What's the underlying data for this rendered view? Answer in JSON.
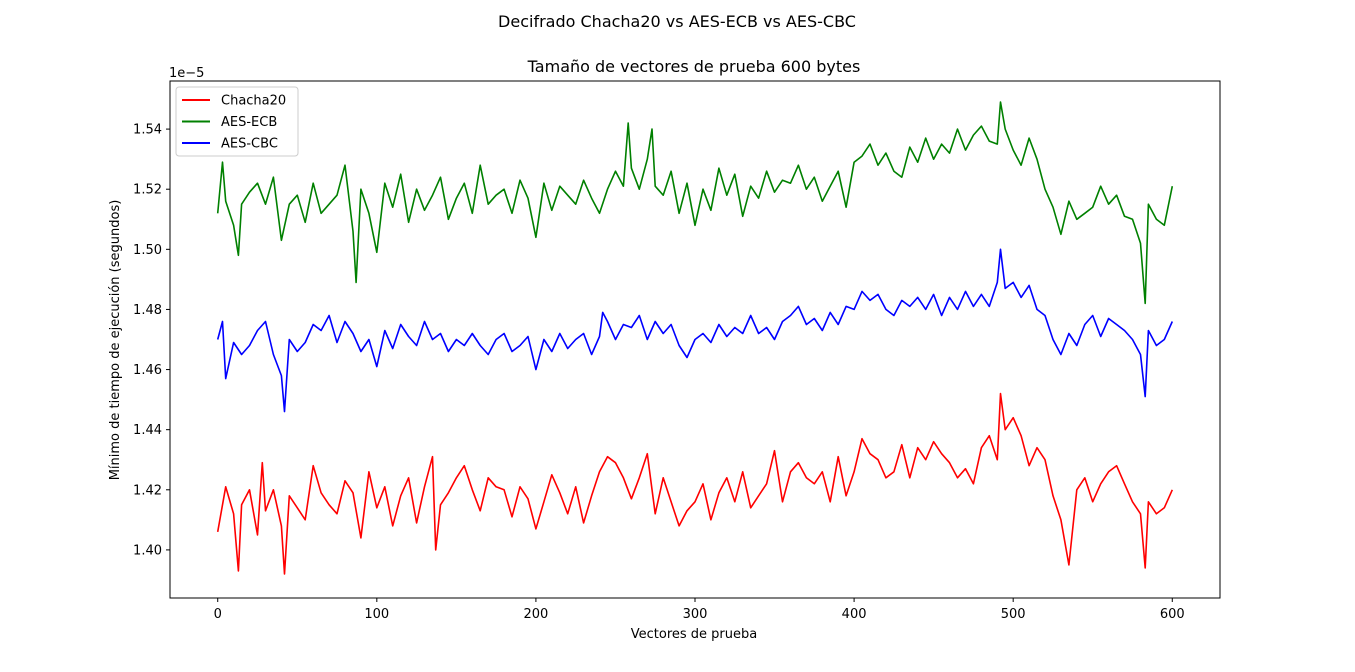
{
  "chart_data": {
    "type": "line",
    "suptitle": "Decifrado Chacha20 vs AES-ECB vs AES-CBC",
    "title": "Tamaño de vectores de prueba 600 bytes",
    "xlabel": "Vectores de prueba",
    "ylabel": "Mínimo de tiempo de ejecución (segundos)",
    "y_offset_label": "1e−5",
    "xlim": [
      -30,
      630
    ],
    "ylim": [
      1.384,
      1.556
    ],
    "xticks": [
      0,
      100,
      200,
      300,
      400,
      500,
      600
    ],
    "yticks": [
      1.4,
      1.42,
      1.44,
      1.46,
      1.48,
      1.5,
      1.52,
      1.54
    ],
    "xtick_labels": [
      "0",
      "100",
      "200",
      "300",
      "400",
      "500",
      "600"
    ],
    "ytick_labels": [
      "1.40",
      "1.42",
      "1.44",
      "1.46",
      "1.48",
      "1.50",
      "1.52",
      "1.54"
    ],
    "grid": false,
    "legend_position": "top-left",
    "series": [
      {
        "name": "Chacha20",
        "color": "#ff0000",
        "x": [
          0,
          5,
          10,
          13,
          15,
          20,
          25,
          28,
          30,
          35,
          40,
          42,
          45,
          50,
          55,
          60,
          65,
          70,
          75,
          80,
          85,
          90,
          95,
          100,
          105,
          110,
          115,
          120,
          125,
          130,
          135,
          137,
          140,
          145,
          150,
          155,
          160,
          165,
          170,
          175,
          180,
          185,
          190,
          195,
          200,
          205,
          210,
          215,
          220,
          225,
          230,
          235,
          240,
          245,
          250,
          255,
          260,
          265,
          270,
          275,
          280,
          285,
          290,
          295,
          300,
          305,
          310,
          315,
          320,
          325,
          330,
          335,
          340,
          345,
          350,
          355,
          360,
          365,
          370,
          375,
          380,
          385,
          390,
          395,
          400,
          405,
          410,
          415,
          420,
          425,
          430,
          435,
          440,
          445,
          450,
          455,
          460,
          465,
          470,
          475,
          480,
          485,
          490,
          492,
          495,
          500,
          505,
          510,
          515,
          520,
          525,
          530,
          535,
          540,
          545,
          550,
          555,
          560,
          565,
          570,
          575,
          580,
          583,
          585,
          590,
          595,
          600
        ],
        "values": [
          1.406,
          1.421,
          1.412,
          1.393,
          1.415,
          1.42,
          1.405,
          1.429,
          1.413,
          1.42,
          1.408,
          1.392,
          1.418,
          1.414,
          1.41,
          1.428,
          1.419,
          1.415,
          1.412,
          1.423,
          1.419,
          1.404,
          1.426,
          1.414,
          1.421,
          1.408,
          1.418,
          1.424,
          1.409,
          1.421,
          1.431,
          1.4,
          1.415,
          1.419,
          1.424,
          1.428,
          1.42,
          1.413,
          1.424,
          1.421,
          1.42,
          1.411,
          1.421,
          1.417,
          1.407,
          1.416,
          1.425,
          1.419,
          1.412,
          1.421,
          1.409,
          1.418,
          1.426,
          1.431,
          1.429,
          1.424,
          1.417,
          1.424,
          1.432,
          1.412,
          1.424,
          1.416,
          1.408,
          1.413,
          1.416,
          1.422,
          1.41,
          1.419,
          1.424,
          1.416,
          1.426,
          1.414,
          1.418,
          1.422,
          1.433,
          1.416,
          1.426,
          1.429,
          1.424,
          1.422,
          1.426,
          1.416,
          1.431,
          1.418,
          1.426,
          1.437,
          1.432,
          1.43,
          1.424,
          1.426,
          1.435,
          1.424,
          1.434,
          1.43,
          1.436,
          1.432,
          1.429,
          1.424,
          1.427,
          1.422,
          1.434,
          1.438,
          1.43,
          1.452,
          1.44,
          1.444,
          1.438,
          1.428,
          1.434,
          1.43,
          1.418,
          1.41,
          1.395,
          1.42,
          1.424,
          1.416,
          1.422,
          1.426,
          1.428,
          1.422,
          1.416,
          1.412,
          1.394,
          1.416,
          1.412,
          1.414,
          1.42
        ]
      },
      {
        "name": "AES-ECB",
        "color": "#008000",
        "x": [
          0,
          3,
          5,
          10,
          13,
          15,
          20,
          25,
          30,
          35,
          40,
          45,
          50,
          55,
          60,
          65,
          70,
          75,
          80,
          85,
          87,
          90,
          95,
          100,
          105,
          110,
          115,
          120,
          125,
          130,
          135,
          140,
          145,
          150,
          155,
          160,
          165,
          170,
          175,
          180,
          185,
          190,
          195,
          200,
          205,
          210,
          215,
          220,
          225,
          230,
          235,
          240,
          245,
          250,
          255,
          258,
          260,
          265,
          270,
          273,
          275,
          280,
          285,
          290,
          295,
          300,
          305,
          310,
          315,
          320,
          325,
          330,
          335,
          340,
          345,
          350,
          355,
          360,
          365,
          370,
          375,
          380,
          385,
          390,
          395,
          400,
          405,
          410,
          415,
          420,
          425,
          430,
          435,
          440,
          445,
          450,
          455,
          460,
          465,
          470,
          475,
          480,
          485,
          490,
          492,
          495,
          500,
          505,
          510,
          515,
          520,
          525,
          530,
          535,
          540,
          545,
          550,
          555,
          560,
          565,
          570,
          575,
          580,
          583,
          585,
          590,
          595,
          600
        ],
        "values": [
          1.512,
          1.529,
          1.516,
          1.508,
          1.498,
          1.515,
          1.519,
          1.522,
          1.515,
          1.524,
          1.503,
          1.515,
          1.518,
          1.509,
          1.522,
          1.512,
          1.515,
          1.518,
          1.528,
          1.506,
          1.489,
          1.52,
          1.512,
          1.499,
          1.522,
          1.514,
          1.525,
          1.509,
          1.52,
          1.513,
          1.518,
          1.524,
          1.51,
          1.517,
          1.522,
          1.512,
          1.528,
          1.515,
          1.518,
          1.52,
          1.512,
          1.523,
          1.517,
          1.504,
          1.522,
          1.513,
          1.521,
          1.518,
          1.515,
          1.523,
          1.517,
          1.512,
          1.52,
          1.526,
          1.521,
          1.542,
          1.527,
          1.52,
          1.53,
          1.54,
          1.521,
          1.518,
          1.526,
          1.512,
          1.522,
          1.508,
          1.52,
          1.513,
          1.527,
          1.518,
          1.525,
          1.511,
          1.521,
          1.517,
          1.526,
          1.519,
          1.523,
          1.522,
          1.528,
          1.52,
          1.524,
          1.516,
          1.521,
          1.526,
          1.514,
          1.529,
          1.531,
          1.535,
          1.528,
          1.532,
          1.526,
          1.524,
          1.534,
          1.529,
          1.537,
          1.53,
          1.535,
          1.532,
          1.54,
          1.533,
          1.538,
          1.541,
          1.536,
          1.535,
          1.549,
          1.54,
          1.533,
          1.528,
          1.537,
          1.53,
          1.52,
          1.514,
          1.505,
          1.516,
          1.51,
          1.512,
          1.514,
          1.521,
          1.515,
          1.518,
          1.511,
          1.51,
          1.502,
          1.482,
          1.515,
          1.51,
          1.508,
          1.521
        ]
      },
      {
        "name": "AES-CBC",
        "color": "#0000ff",
        "x": [
          0,
          3,
          5,
          10,
          15,
          20,
          25,
          30,
          35,
          40,
          42,
          45,
          50,
          55,
          60,
          65,
          70,
          75,
          80,
          85,
          90,
          95,
          100,
          105,
          110,
          115,
          120,
          125,
          130,
          135,
          140,
          145,
          150,
          155,
          160,
          165,
          170,
          175,
          180,
          185,
          190,
          195,
          200,
          205,
          210,
          215,
          220,
          225,
          230,
          235,
          240,
          242,
          245,
          250,
          255,
          260,
          265,
          270,
          275,
          280,
          285,
          290,
          295,
          300,
          305,
          310,
          315,
          320,
          325,
          330,
          335,
          340,
          345,
          350,
          355,
          360,
          365,
          370,
          375,
          380,
          385,
          390,
          395,
          400,
          405,
          410,
          415,
          420,
          425,
          430,
          435,
          440,
          445,
          450,
          455,
          460,
          465,
          470,
          475,
          480,
          485,
          490,
          492,
          495,
          500,
          505,
          510,
          515,
          520,
          525,
          530,
          535,
          540,
          545,
          550,
          555,
          560,
          565,
          570,
          575,
          580,
          583,
          585,
          590,
          595,
          600
        ],
        "values": [
          1.47,
          1.476,
          1.457,
          1.469,
          1.465,
          1.468,
          1.473,
          1.476,
          1.465,
          1.458,
          1.446,
          1.47,
          1.466,
          1.469,
          1.475,
          1.473,
          1.478,
          1.469,
          1.476,
          1.472,
          1.466,
          1.47,
          1.461,
          1.473,
          1.467,
          1.475,
          1.471,
          1.468,
          1.476,
          1.47,
          1.472,
          1.466,
          1.47,
          1.468,
          1.472,
          1.468,
          1.465,
          1.47,
          1.472,
          1.466,
          1.468,
          1.471,
          1.46,
          1.47,
          1.466,
          1.472,
          1.467,
          1.47,
          1.472,
          1.465,
          1.471,
          1.479,
          1.476,
          1.47,
          1.475,
          1.474,
          1.478,
          1.47,
          1.476,
          1.472,
          1.475,
          1.468,
          1.464,
          1.47,
          1.472,
          1.469,
          1.475,
          1.471,
          1.474,
          1.472,
          1.478,
          1.472,
          1.474,
          1.47,
          1.476,
          1.478,
          1.481,
          1.475,
          1.477,
          1.473,
          1.479,
          1.475,
          1.481,
          1.48,
          1.486,
          1.483,
          1.485,
          1.48,
          1.478,
          1.483,
          1.481,
          1.484,
          1.48,
          1.485,
          1.478,
          1.484,
          1.48,
          1.486,
          1.481,
          1.485,
          1.481,
          1.489,
          1.5,
          1.487,
          1.489,
          1.484,
          1.488,
          1.48,
          1.478,
          1.47,
          1.465,
          1.472,
          1.468,
          1.475,
          1.478,
          1.471,
          1.477,
          1.475,
          1.473,
          1.47,
          1.465,
          1.451,
          1.473,
          1.468,
          1.47,
          1.476
        ]
      }
    ]
  }
}
